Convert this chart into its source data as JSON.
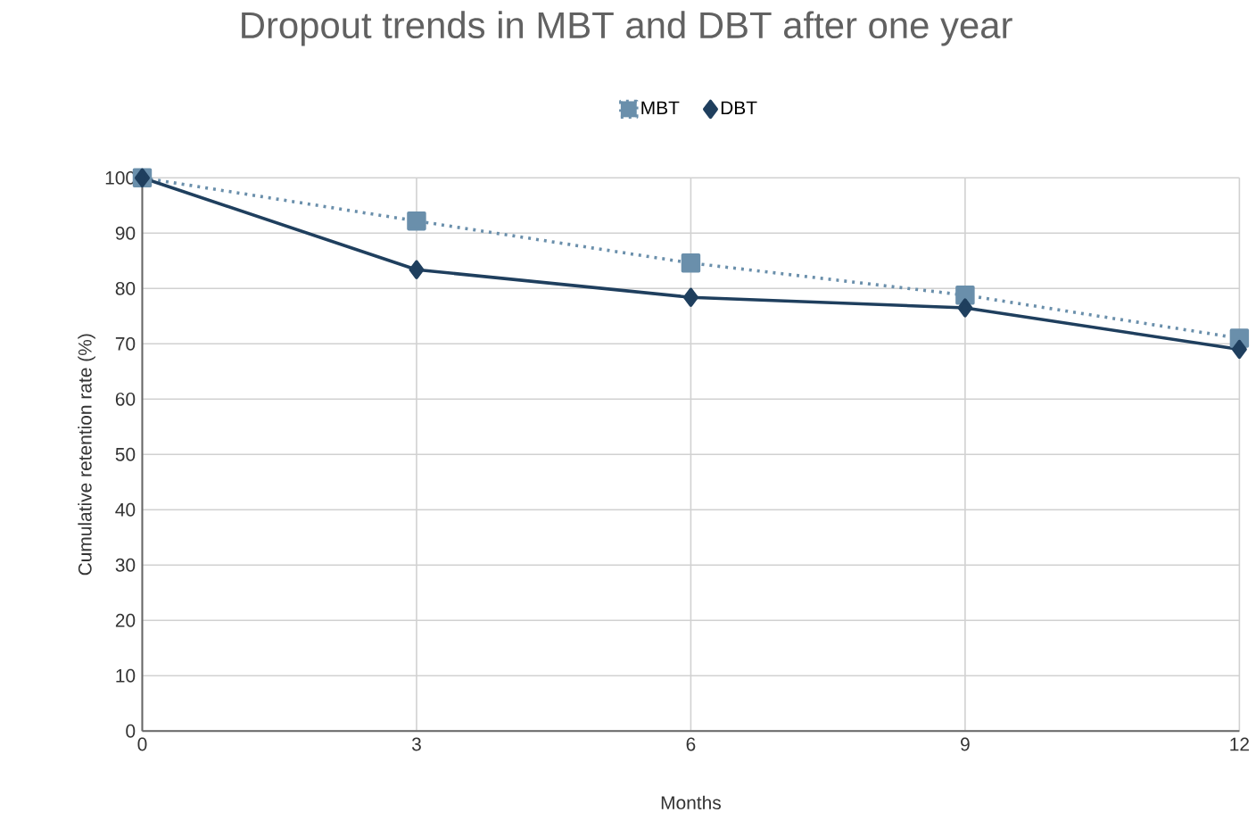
{
  "chart_data": {
    "type": "line",
    "title": "Dropout trends in MBT and DBT after one year",
    "xlabel": "Months",
    "ylabel": "Cumulative retention rate (%)",
    "x": [
      0,
      3,
      6,
      9,
      12
    ],
    "series": [
      {
        "name": "MBT",
        "color": "#6a8fab",
        "values": [
          100,
          92.2,
          84.6,
          78.8,
          71.0
        ],
        "marker": "square",
        "line_style": "dotted"
      },
      {
        "name": "DBT",
        "color": "#1f3f5e",
        "values": [
          100,
          83.4,
          78.4,
          76.5,
          69.0
        ],
        "marker": "diamond",
        "line_style": "solid"
      }
    ],
    "xlim": [
      0,
      12
    ],
    "xticks": [
      0,
      3,
      6,
      9,
      12
    ],
    "ylim": [
      0,
      100
    ],
    "yticks": [
      0,
      10,
      20,
      30,
      40,
      50,
      60,
      70,
      80,
      90,
      100
    ],
    "grid": true,
    "legend": "top"
  }
}
